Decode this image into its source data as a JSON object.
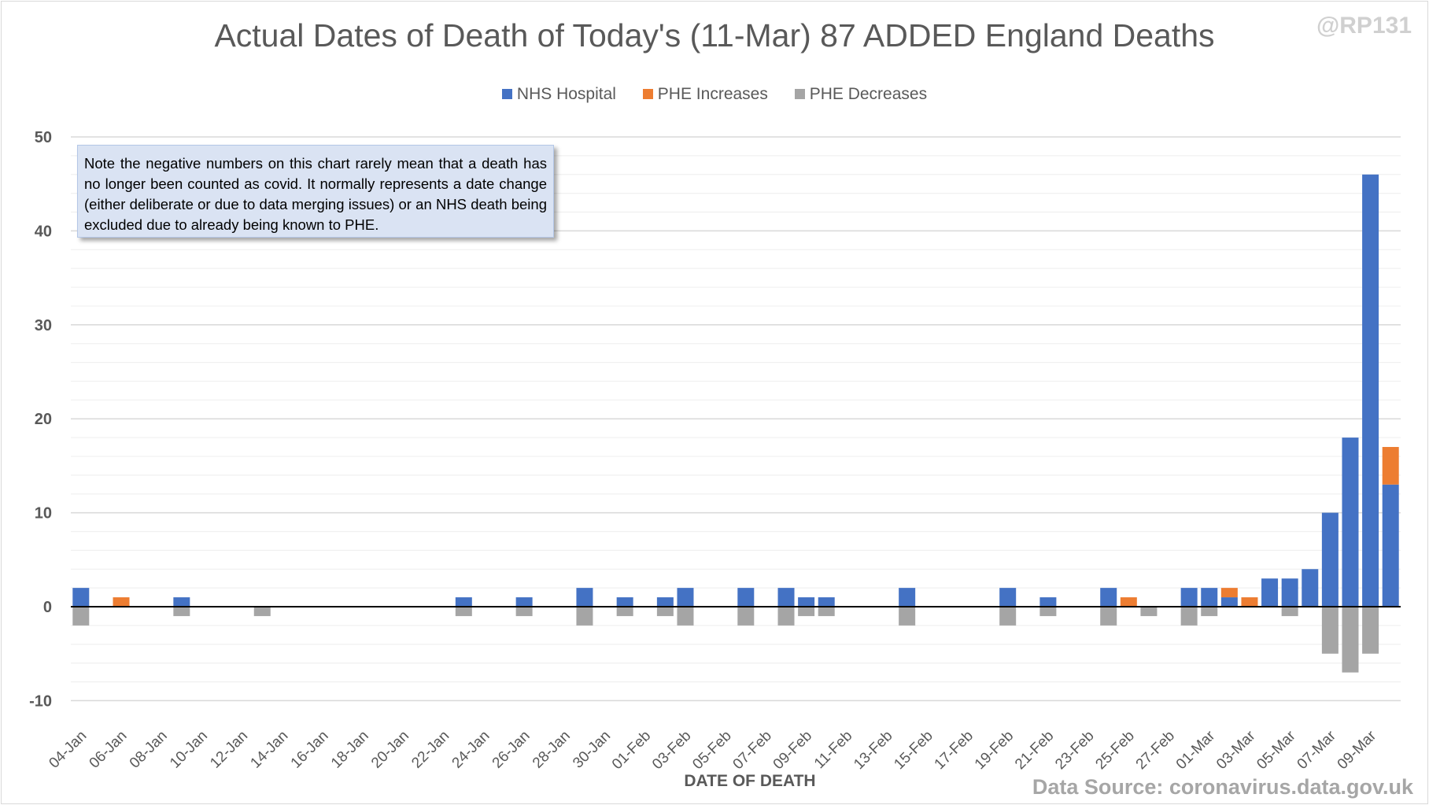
{
  "watermark": "@RP131",
  "note": "Note the negative numbers on this chart rarely mean that a death has no longer been counted as covid. It normally represents a date change (either deliberate or due to data merging issues) or an NHS death being excluded due to already being known to PHE.",
  "source": "Data Source: coronavirus.data.gov.uk",
  "chart_data": {
    "type": "bar",
    "stacked": true,
    "title": "Actual Dates of Death of Today's (11-Mar) 87 ADDED England Deaths",
    "xlabel": "DATE OF DEATH",
    "ylabel": "",
    "ylim": [
      -10,
      50
    ],
    "yticks": [
      -10,
      0,
      10,
      20,
      30,
      40,
      50
    ],
    "grid": true,
    "legend_position": "top",
    "colors": {
      "NHS Hospital": "#4472c4",
      "PHE Increases": "#ed7d31",
      "PHE Decreases": "#a5a5a5"
    },
    "categories": [
      "04-Jan",
      "05-Jan",
      "06-Jan",
      "07-Jan",
      "08-Jan",
      "09-Jan",
      "10-Jan",
      "11-Jan",
      "12-Jan",
      "13-Jan",
      "14-Jan",
      "15-Jan",
      "16-Jan",
      "17-Jan",
      "18-Jan",
      "19-Jan",
      "20-Jan",
      "21-Jan",
      "22-Jan",
      "23-Jan",
      "24-Jan",
      "25-Jan",
      "26-Jan",
      "27-Jan",
      "28-Jan",
      "29-Jan",
      "30-Jan",
      "31-Jan",
      "01-Feb",
      "02-Feb",
      "03-Feb",
      "04-Feb",
      "05-Feb",
      "06-Feb",
      "07-Feb",
      "08-Feb",
      "09-Feb",
      "10-Feb",
      "11-Feb",
      "12-Feb",
      "13-Feb",
      "14-Feb",
      "15-Feb",
      "16-Feb",
      "17-Feb",
      "18-Feb",
      "19-Feb",
      "20-Feb",
      "21-Feb",
      "22-Feb",
      "23-Feb",
      "24-Feb",
      "25-Feb",
      "26-Feb",
      "27-Feb",
      "28-Feb",
      "01-Mar",
      "02-Mar",
      "03-Mar",
      "04-Mar",
      "05-Mar",
      "06-Mar",
      "07-Mar",
      "08-Mar",
      "09-Mar",
      "10-Mar"
    ],
    "series": [
      {
        "name": "NHS Hospital",
        "values": [
          2,
          0,
          0,
          0,
          0,
          1,
          0,
          0,
          0,
          0,
          0,
          0,
          0,
          0,
          0,
          0,
          0,
          0,
          0,
          1,
          0,
          0,
          1,
          0,
          0,
          2,
          0,
          1,
          0,
          1,
          2,
          0,
          0,
          2,
          0,
          2,
          1,
          1,
          0,
          0,
          0,
          2,
          0,
          0,
          0,
          0,
          2,
          0,
          1,
          0,
          0,
          2,
          0,
          0,
          0,
          2,
          2,
          1,
          0,
          3,
          3,
          4,
          10,
          18,
          46,
          13
        ]
      },
      {
        "name": "PHE Increases",
        "values": [
          0,
          0,
          1,
          0,
          0,
          0,
          0,
          0,
          0,
          0,
          0,
          0,
          0,
          0,
          0,
          0,
          0,
          0,
          0,
          0,
          0,
          0,
          0,
          0,
          0,
          0,
          0,
          0,
          0,
          0,
          0,
          0,
          0,
          0,
          0,
          0,
          0,
          0,
          0,
          0,
          0,
          0,
          0,
          0,
          0,
          0,
          0,
          0,
          0,
          0,
          0,
          0,
          1,
          0,
          0,
          0,
          0,
          1,
          1,
          0,
          0,
          0,
          0,
          0,
          0,
          4
        ]
      },
      {
        "name": "PHE Decreases",
        "values": [
          -2,
          0,
          0,
          0,
          0,
          -1,
          0,
          0,
          0,
          -1,
          0,
          0,
          0,
          0,
          0,
          0,
          0,
          0,
          0,
          -1,
          0,
          0,
          -1,
          0,
          0,
          -2,
          0,
          -1,
          0,
          -1,
          -2,
          0,
          0,
          -2,
          0,
          -2,
          -1,
          -1,
          0,
          0,
          0,
          -2,
          0,
          0,
          0,
          0,
          -2,
          0,
          -1,
          0,
          0,
          -2,
          0,
          -1,
          0,
          -2,
          -1,
          0,
          0,
          0,
          -1,
          0,
          -5,
          -7,
          -5,
          0
        ]
      }
    ]
  }
}
